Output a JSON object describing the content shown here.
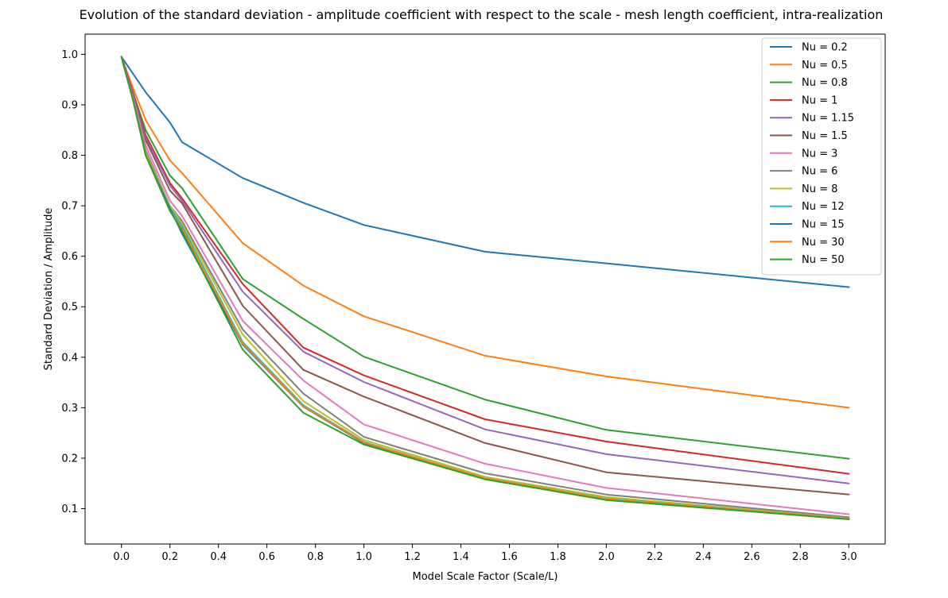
{
  "chart_data": {
    "type": "line",
    "title": "Evolution of the standard deviation - amplitude coefficient with respect to the scale - mesh length coefficient, intra-realization",
    "xlabel": "Model Scale Factor (Scale/L)",
    "ylabel": "Standard Deviation / Amplitude",
    "xlim": [
      -0.15,
      3.15
    ],
    "ylim": [
      0.03,
      1.04
    ],
    "xticks": [
      0.0,
      0.2,
      0.4,
      0.6,
      0.8,
      1.0,
      1.2,
      1.4,
      1.6,
      1.8,
      2.0,
      2.2,
      2.4,
      2.6,
      2.8,
      3.0
    ],
    "xtick_labels": [
      "0.0",
      "0.2",
      "0.4",
      "0.6",
      "0.8",
      "1.0",
      "1.2",
      "1.4",
      "1.6",
      "1.8",
      "2.0",
      "2.2",
      "2.4",
      "2.6",
      "2.8",
      "3.0"
    ],
    "yticks": [
      0.1,
      0.2,
      0.3,
      0.4,
      0.5,
      0.6,
      0.7,
      0.8,
      0.9,
      1.0
    ],
    "ytick_labels": [
      "0.1",
      "0.2",
      "0.3",
      "0.4",
      "0.5",
      "0.6",
      "0.7",
      "0.8",
      "0.9",
      "1.0"
    ],
    "grid": false,
    "legend_position": "upper-right",
    "x": [
      0.0,
      0.05,
      0.1,
      0.2,
      0.25,
      0.5,
      0.75,
      1.0,
      1.5,
      2.0,
      3.0
    ],
    "series": [
      {
        "name": "Nu = 0.2",
        "color": "#1f77b4",
        "values": [
          0.995,
          0.96,
          0.925,
          0.865,
          0.826,
          0.755,
          0.706,
          0.662,
          0.609,
          0.586,
          0.539
        ]
      },
      {
        "name": "Nu = 0.5",
        "color": "#ff7f0e",
        "values": [
          0.995,
          0.93,
          0.87,
          0.79,
          0.765,
          0.626,
          0.542,
          0.481,
          0.403,
          0.362,
          0.3
        ]
      },
      {
        "name": "Nu = 0.8",
        "color": "#2ca02c",
        "values": [
          0.995,
          0.92,
          0.85,
          0.76,
          0.735,
          0.555,
          0.476,
          0.401,
          0.316,
          0.256,
          0.199
        ]
      },
      {
        "name": "Nu = 1",
        "color": "#d62728",
        "values": [
          0.995,
          0.92,
          0.84,
          0.745,
          0.715,
          0.545,
          0.419,
          0.364,
          0.277,
          0.233,
          0.169
        ]
      },
      {
        "name": "Nu = 1.15",
        "color": "#9467bd",
        "values": [
          0.995,
          0.915,
          0.835,
          0.74,
          0.71,
          0.53,
          0.411,
          0.351,
          0.257,
          0.208,
          0.15
        ]
      },
      {
        "name": "Nu = 1.5",
        "color": "#8c564b",
        "values": [
          0.995,
          0.91,
          0.83,
          0.73,
          0.705,
          0.502,
          0.375,
          0.322,
          0.23,
          0.172,
          0.128
        ]
      },
      {
        "name": "Nu = 3",
        "color": "#e377c2",
        "values": [
          0.995,
          0.91,
          0.82,
          0.71,
          0.68,
          0.472,
          0.354,
          0.267,
          0.189,
          0.141,
          0.089
        ]
      },
      {
        "name": "Nu = 6",
        "color": "#7f7f7f",
        "values": [
          0.995,
          0.905,
          0.81,
          0.7,
          0.67,
          0.455,
          0.328,
          0.242,
          0.17,
          0.128,
          0.083
        ]
      },
      {
        "name": "Nu = 8",
        "color": "#bcbd22",
        "values": [
          0.995,
          0.905,
          0.805,
          0.7,
          0.665,
          0.445,
          0.313,
          0.236,
          0.163,
          0.123,
          0.081
        ]
      },
      {
        "name": "Nu = 12",
        "color": "#17becf",
        "values": [
          0.995,
          0.905,
          0.8,
          0.695,
          0.66,
          0.43,
          0.305,
          0.232,
          0.16,
          0.12,
          0.08
        ]
      },
      {
        "name": "Nu = 15",
        "color": "#1f77b4",
        "values": [
          0.995,
          0.905,
          0.8,
          0.695,
          0.645,
          0.425,
          0.302,
          0.23,
          0.159,
          0.118,
          0.08
        ]
      },
      {
        "name": "Nu = 30",
        "color": "#ff7f0e",
        "values": [
          0.995,
          0.905,
          0.8,
          0.69,
          0.655,
          0.427,
          0.303,
          0.231,
          0.16,
          0.119,
          0.08
        ]
      },
      {
        "name": "Nu = 50",
        "color": "#2ca02c",
        "values": [
          0.995,
          0.905,
          0.8,
          0.69,
          0.65,
          0.415,
          0.29,
          0.227,
          0.158,
          0.117,
          0.079
        ]
      }
    ]
  }
}
